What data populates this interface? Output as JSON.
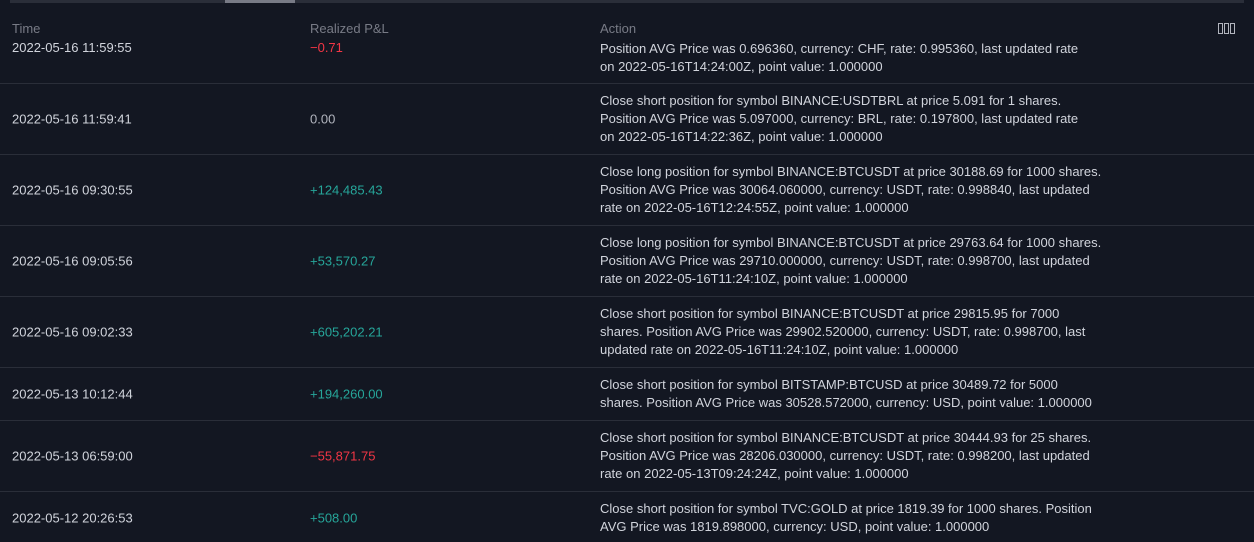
{
  "header": {
    "time_label": "Time",
    "pl_label": "Realized P&L",
    "action_label": "Action"
  },
  "colors": {
    "background": "#131722",
    "positive": "#26a69a",
    "negative": "#f23645",
    "neutral": "#b2b5be"
  },
  "rows": [
    {
      "time": "2022-05-16 11:59:55",
      "pl": "−0.71",
      "sign": "negative",
      "action_lines": [
        "Position AVG Price was 0.696360, currency: CHF, rate: 0.995360, last updated rate",
        "on 2022-05-16T14:24:00Z, point value: 1.000000"
      ]
    },
    {
      "time": "2022-05-16 11:59:41",
      "pl": "0.00",
      "sign": "neutral",
      "action_lines": [
        "Close short position for symbol BINANCE:USDTBRL at price 5.091 for 1 shares.",
        "Position AVG Price was 5.097000, currency: BRL, rate: 0.197800, last updated rate",
        "on 2022-05-16T14:22:36Z, point value: 1.000000"
      ]
    },
    {
      "time": "2022-05-16 09:30:55",
      "pl": "+124,485.43",
      "sign": "positive",
      "action_lines": [
        "Close long position for symbol BINANCE:BTCUSDT at price 30188.69 for 1000 shares.",
        "Position AVG Price was 30064.060000, currency: USDT, rate: 0.998840, last updated",
        "rate on 2022-05-16T12:24:55Z, point value: 1.000000"
      ]
    },
    {
      "time": "2022-05-16 09:05:56",
      "pl": "+53,570.27",
      "sign": "positive",
      "action_lines": [
        "Close long position for symbol BINANCE:BTCUSDT at price 29763.64 for 1000 shares.",
        "Position AVG Price was 29710.000000, currency: USDT, rate: 0.998700, last updated",
        "rate on 2022-05-16T11:24:10Z, point value: 1.000000"
      ]
    },
    {
      "time": "2022-05-16 09:02:33",
      "pl": "+605,202.21",
      "sign": "positive",
      "action_lines": [
        "Close short position for symbol BINANCE:BTCUSDT at price 29815.95 for 7000",
        "shares. Position AVG Price was 29902.520000, currency: USDT, rate: 0.998700, last",
        "updated rate on 2022-05-16T11:24:10Z, point value: 1.000000"
      ]
    },
    {
      "time": "2022-05-13 10:12:44",
      "pl": "+194,260.00",
      "sign": "positive",
      "action_lines": [
        "Close short position for symbol BITSTAMP:BTCUSD at price 30489.72 for 5000",
        "shares. Position AVG Price was 30528.572000, currency: USD, point value: 1.000000"
      ]
    },
    {
      "time": "2022-05-13 06:59:00",
      "pl": "−55,871.75",
      "sign": "negative",
      "action_lines": [
        "Close short position for symbol BINANCE:BTCUSDT at price 30444.93 for 25 shares.",
        "Position AVG Price was 28206.030000, currency: USDT, rate: 0.998200, last updated",
        "rate on 2022-05-13T09:24:24Z, point value: 1.000000"
      ]
    },
    {
      "time": "2022-05-12 20:26:53",
      "pl": "+508.00",
      "sign": "positive",
      "action_lines": [
        "Close short position for symbol TVC:GOLD at price 1819.39 for 1000 shares. Position",
        "AVG Price was 1819.898000, currency: USD, point value: 1.000000"
      ]
    }
  ]
}
